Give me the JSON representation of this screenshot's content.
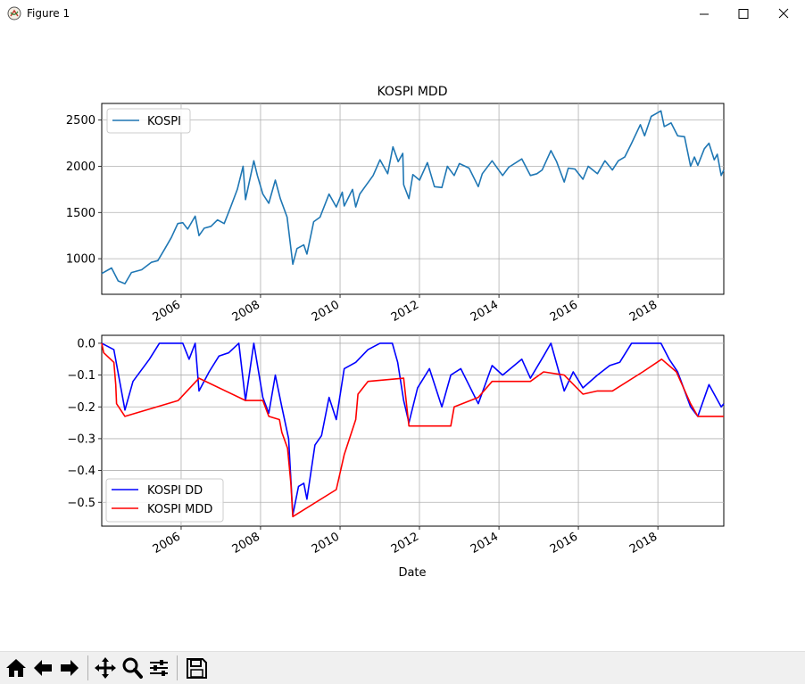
{
  "window": {
    "title": "Figure 1",
    "icons": [
      "app-icon",
      "minimize-icon",
      "maximize-icon",
      "close-icon"
    ]
  },
  "toolbar": {
    "buttons": [
      "home-icon",
      "back-icon",
      "forward-icon",
      "pan-icon",
      "zoom-icon",
      "configure-subplots-icon",
      "save-icon"
    ]
  },
  "chart_data": [
    {
      "type": "line",
      "title": "KOSPI MDD",
      "xlabel": "",
      "ylabel": "",
      "xlim": [
        "2004-01-02",
        "2019-08-30"
      ],
      "ylim": [
        615,
        2680
      ],
      "x_ticks": [
        "2006",
        "2008",
        "2010",
        "2012",
        "2014",
        "2016",
        "2018"
      ],
      "y_ticks": [
        1000,
        1500,
        2000,
        2500
      ],
      "y_tick_labels": [
        "1000",
        "1500",
        "2000",
        "2500"
      ],
      "grid": true,
      "legend": "upper left",
      "colors": {
        "KOSPI": "#1f77b4"
      },
      "series": [
        {
          "name": "KOSPI",
          "x": [
            "2004-01-02",
            "2004-04-01",
            "2004-06-01",
            "2004-08-02",
            "2004-10-01",
            "2005-01-03",
            "2005-04-01",
            "2005-06-01",
            "2005-08-01",
            "2005-10-03",
            "2005-12-01",
            "2006-01-16",
            "2006-03-02",
            "2006-05-10",
            "2006-06-14",
            "2006-08-01",
            "2006-10-02",
            "2006-12-01",
            "2007-02-01",
            "2007-04-02",
            "2007-06-01",
            "2007-07-25",
            "2007-08-16",
            "2007-10-31",
            "2007-12-03",
            "2008-01-22",
            "2008-03-17",
            "2008-05-16",
            "2008-07-01",
            "2008-09-01",
            "2008-10-24",
            "2008-12-01",
            "2009-02-02",
            "2009-03-02",
            "2009-05-04",
            "2009-07-01",
            "2009-09-22",
            "2009-11-27",
            "2010-01-21",
            "2010-02-08",
            "2010-04-26",
            "2010-05-25",
            "2010-07-01",
            "2010-09-01",
            "2010-11-01",
            "2011-01-03",
            "2011-03-15",
            "2011-05-02",
            "2011-06-20",
            "2011-08-01",
            "2011-08-09",
            "2011-09-26",
            "2011-11-01",
            "2012-01-02",
            "2012-03-14",
            "2012-05-18",
            "2012-07-25",
            "2012-09-14",
            "2012-11-15",
            "2013-01-02",
            "2013-04-01",
            "2013-06-25",
            "2013-08-01",
            "2013-10-30",
            "2014-02-04",
            "2014-04-01",
            "2014-07-30",
            "2014-10-17",
            "2014-12-16",
            "2015-02-02",
            "2015-04-24",
            "2015-06-15",
            "2015-08-24",
            "2015-10-01",
            "2015-12-01",
            "2016-02-12",
            "2016-04-01",
            "2016-06-24",
            "2016-09-01",
            "2016-11-09",
            "2017-01-02",
            "2017-03-02",
            "2017-05-04",
            "2017-07-24",
            "2017-09-01",
            "2017-11-01",
            "2018-01-29",
            "2018-03-01",
            "2018-05-02",
            "2018-07-02",
            "2018-09-03",
            "2018-10-29",
            "2018-12-03",
            "2019-01-03",
            "2019-03-04",
            "2019-04-16",
            "2019-06-03",
            "2019-07-01",
            "2019-08-06",
            "2019-08-30"
          ],
          "values": [
            840,
            900,
            760,
            730,
            850,
            880,
            960,
            980,
            1100,
            1230,
            1380,
            1390,
            1320,
            1460,
            1250,
            1330,
            1350,
            1420,
            1380,
            1560,
            1750,
            2000,
            1640,
            2060,
            1900,
            1700,
            1600,
            1850,
            1650,
            1450,
            940,
            1110,
            1150,
            1050,
            1400,
            1450,
            1700,
            1560,
            1720,
            1570,
            1750,
            1560,
            1700,
            1800,
            1900,
            2070,
            1920,
            2210,
            2050,
            2140,
            1801,
            1650,
            1910,
            1850,
            2040,
            1780,
            1770,
            2000,
            1900,
            2030,
            1980,
            1780,
            1920,
            2060,
            1900,
            1990,
            2080,
            1900,
            1920,
            1960,
            2170,
            2050,
            1830,
            1980,
            1970,
            1860,
            2000,
            1920,
            2060,
            1960,
            2060,
            2100,
            2250,
            2450,
            2330,
            2540,
            2600,
            2430,
            2470,
            2330,
            2320,
            2000,
            2100,
            2010,
            2190,
            2250,
            2070,
            2130,
            1900,
            1960
          ]
        }
      ]
    },
    {
      "type": "line",
      "title": "",
      "xlabel": "Date",
      "ylabel": "",
      "xlim": [
        "2004-01-02",
        "2019-08-30"
      ],
      "ylim": [
        -0.575,
        0.025
      ],
      "x_ticks": [
        "2006",
        "2008",
        "2010",
        "2012",
        "2014",
        "2016",
        "2018"
      ],
      "y_ticks": [
        0.0,
        -0.1,
        -0.2,
        -0.3,
        -0.4,
        -0.5
      ],
      "y_tick_labels": [
        "0.0",
        "−0.1",
        "−0.2",
        "−0.3",
        "−0.4",
        "−0.5"
      ],
      "grid": true,
      "legend": "lower left",
      "colors": {
        "KOSPI DD": "#0000ff",
        "KOSPI MDD": "#ff0000"
      },
      "series": [
        {
          "name": "KOSPI DD",
          "x": [
            "2004-01-02",
            "2004-04-23",
            "2004-08-02",
            "2004-10-15",
            "2005-03-15",
            "2005-06-15",
            "2005-09-15",
            "2006-01-16",
            "2006-03-15",
            "2006-05-10",
            "2006-06-14",
            "2006-09-15",
            "2006-12-15",
            "2007-03-15",
            "2007-06-15",
            "2007-08-16",
            "2007-10-31",
            "2008-01-22",
            "2008-03-17",
            "2008-05-16",
            "2008-07-15",
            "2008-09-15",
            "2008-10-24",
            "2008-12-15",
            "2009-02-02",
            "2009-03-02",
            "2009-05-15",
            "2009-07-15",
            "2009-09-22",
            "2009-11-27",
            "2010-02-08",
            "2010-05-25",
            "2010-09-15",
            "2011-01-03",
            "2011-04-27",
            "2011-06-15",
            "2011-08-09",
            "2011-09-26",
            "2011-12-15",
            "2012-04-02",
            "2012-07-25",
            "2012-10-15",
            "2013-01-15",
            "2013-06-25",
            "2013-10-30",
            "2014-02-04",
            "2014-07-30",
            "2014-10-17",
            "2015-02-15",
            "2015-04-24",
            "2015-08-24",
            "2015-11-15",
            "2016-02-12",
            "2016-06-24",
            "2016-10-15",
            "2017-01-15",
            "2017-05-04",
            "2017-08-15",
            "2017-11-15",
            "2018-01-29",
            "2018-04-15",
            "2018-07-02",
            "2018-10-29",
            "2019-01-03",
            "2019-04-16",
            "2019-08-06",
            "2019-08-30"
          ],
          "values": [
            0,
            -0.02,
            -0.21,
            -0.12,
            -0.05,
            0,
            0,
            0,
            -0.05,
            0,
            -0.15,
            -0.09,
            -0.04,
            -0.03,
            0,
            -0.18,
            0,
            -0.17,
            -0.22,
            -0.1,
            -0.2,
            -0.3,
            -0.54,
            -0.45,
            -0.44,
            -0.49,
            -0.32,
            -0.29,
            -0.17,
            -0.24,
            -0.08,
            -0.06,
            -0.02,
            0,
            0,
            -0.06,
            -0.18,
            -0.25,
            -0.14,
            -0.08,
            -0.2,
            -0.1,
            -0.08,
            -0.19,
            -0.07,
            -0.1,
            -0.05,
            -0.11,
            -0.04,
            0,
            -0.15,
            -0.09,
            -0.14,
            -0.1,
            -0.07,
            -0.06,
            0,
            0,
            0,
            0,
            -0.05,
            -0.09,
            -0.2,
            -0.23,
            -0.13,
            -0.2,
            -0.19
          ]
        },
        {
          "name": "KOSPI MDD",
          "x": [
            "2004-01-02",
            "2004-01-20",
            "2004-04-23",
            "2004-05-10",
            "2004-05-17",
            "2004-08-02",
            "2005-12-05",
            "2006-06-14",
            "2007-08-16",
            "2008-01-22",
            "2008-03-17",
            "2008-06-23",
            "2008-07-15",
            "2008-09-05",
            "2008-10-06",
            "2008-10-24",
            "2009-11-27",
            "2010-02-08",
            "2010-05-25",
            "2010-06-15",
            "2010-09-15",
            "2011-08-09",
            "2011-09-26",
            "2012-10-15",
            "2012-11-15",
            "2013-06-25",
            "2013-10-30",
            "2014-10-17",
            "2015-02-15",
            "2015-08-24",
            "2016-02-12",
            "2016-06-24",
            "2016-11-09",
            "2017-08-15",
            "2018-02-05",
            "2018-06-20",
            "2018-10-29",
            "2019-01-03",
            "2019-08-30"
          ],
          "values": [
            0,
            -0.03,
            -0.06,
            -0.13,
            -0.19,
            -0.23,
            -0.18,
            -0.11,
            -0.18,
            -0.18,
            -0.23,
            -0.24,
            -0.28,
            -0.33,
            -0.44,
            -0.545,
            -0.46,
            -0.35,
            -0.24,
            -0.16,
            -0.12,
            -0.11,
            -0.26,
            -0.26,
            -0.2,
            -0.17,
            -0.12,
            -0.12,
            -0.09,
            -0.1,
            -0.16,
            -0.15,
            -0.15,
            -0.09,
            -0.05,
            -0.09,
            -0.19,
            -0.23,
            -0.23
          ]
        }
      ]
    }
  ]
}
